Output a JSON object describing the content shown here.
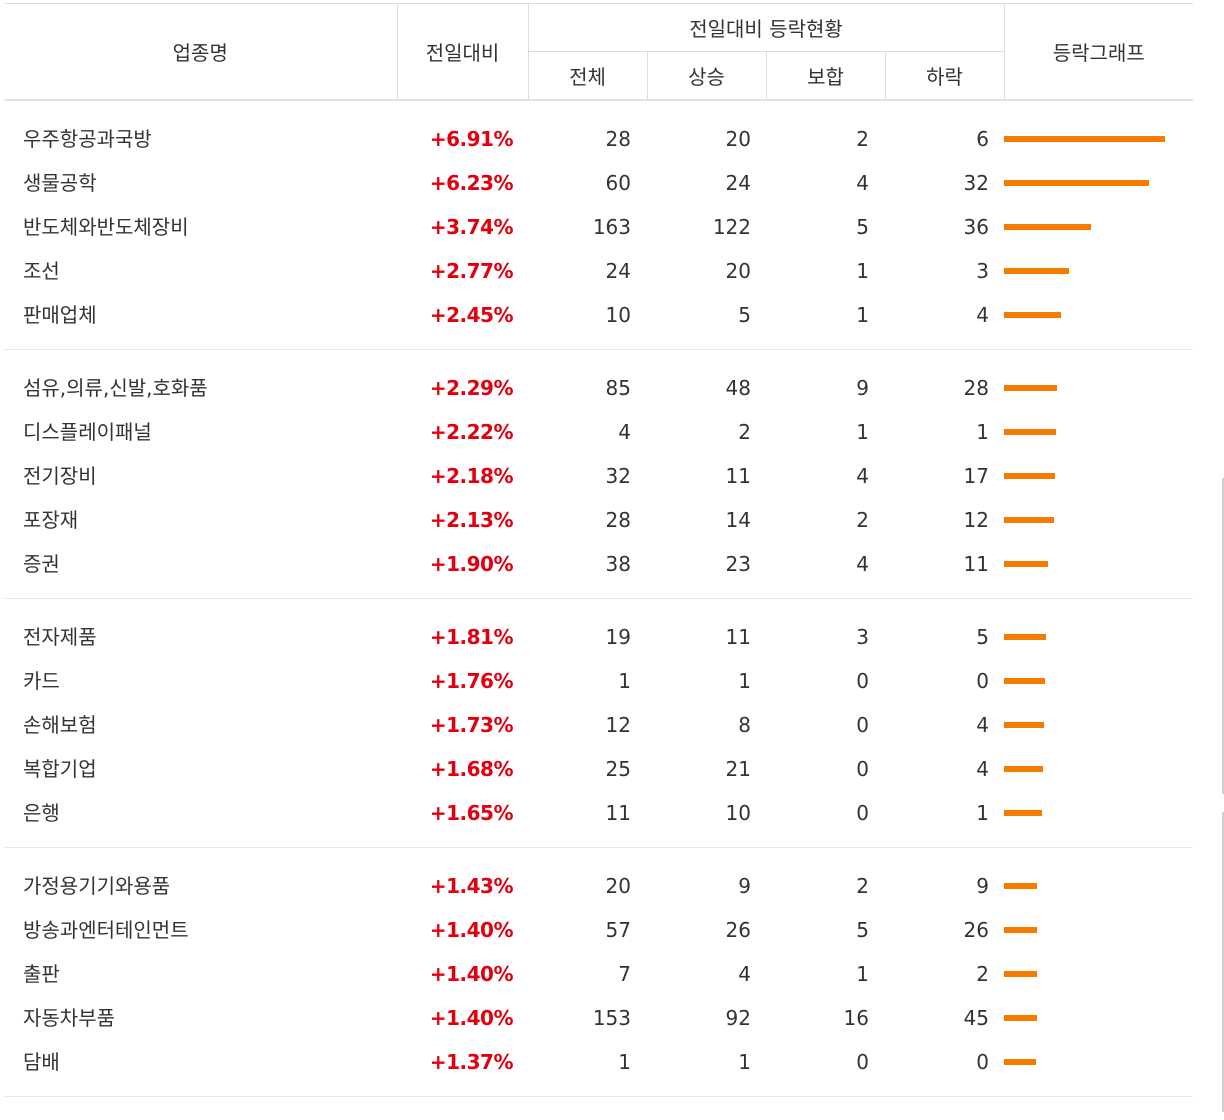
{
  "header": {
    "industry": "업종명",
    "change": "전일대비",
    "group": "전일대비 등락현황",
    "total": "전체",
    "up": "상승",
    "flat": "보합",
    "down": "하락",
    "graph": "등락그래프"
  },
  "colors": {
    "rate": "#e0000f",
    "bar": "#f57c00"
  },
  "groups": [
    {
      "rows": [
        {
          "name": "우주항공과국방",
          "rate": "+6.91%",
          "pct": 6.91,
          "total": "28",
          "up": "20",
          "flat": "2",
          "down": "6"
        },
        {
          "name": "생물공학",
          "rate": "+6.23%",
          "pct": 6.23,
          "total": "60",
          "up": "24",
          "flat": "4",
          "down": "32"
        },
        {
          "name": "반도체와반도체장비",
          "rate": "+3.74%",
          "pct": 3.74,
          "total": "163",
          "up": "122",
          "flat": "5",
          "down": "36"
        },
        {
          "name": "조선",
          "rate": "+2.77%",
          "pct": 2.77,
          "total": "24",
          "up": "20",
          "flat": "1",
          "down": "3"
        },
        {
          "name": "판매업체",
          "rate": "+2.45%",
          "pct": 2.45,
          "total": "10",
          "up": "5",
          "flat": "1",
          "down": "4"
        }
      ]
    },
    {
      "rows": [
        {
          "name": "섬유,의류,신발,호화품",
          "rate": "+2.29%",
          "pct": 2.29,
          "total": "85",
          "up": "48",
          "flat": "9",
          "down": "28"
        },
        {
          "name": "디스플레이패널",
          "rate": "+2.22%",
          "pct": 2.22,
          "total": "4",
          "up": "2",
          "flat": "1",
          "down": "1"
        },
        {
          "name": "전기장비",
          "rate": "+2.18%",
          "pct": 2.18,
          "total": "32",
          "up": "11",
          "flat": "4",
          "down": "17"
        },
        {
          "name": "포장재",
          "rate": "+2.13%",
          "pct": 2.13,
          "total": "28",
          "up": "14",
          "flat": "2",
          "down": "12"
        },
        {
          "name": "증권",
          "rate": "+1.90%",
          "pct": 1.9,
          "total": "38",
          "up": "23",
          "flat": "4",
          "down": "11"
        }
      ]
    },
    {
      "rows": [
        {
          "name": "전자제품",
          "rate": "+1.81%",
          "pct": 1.81,
          "total": "19",
          "up": "11",
          "flat": "3",
          "down": "5"
        },
        {
          "name": "카드",
          "rate": "+1.76%",
          "pct": 1.76,
          "total": "1",
          "up": "1",
          "flat": "0",
          "down": "0"
        },
        {
          "name": "손해보험",
          "rate": "+1.73%",
          "pct": 1.73,
          "total": "12",
          "up": "8",
          "flat": "0",
          "down": "4"
        },
        {
          "name": "복합기업",
          "rate": "+1.68%",
          "pct": 1.68,
          "total": "25",
          "up": "21",
          "flat": "0",
          "down": "4"
        },
        {
          "name": "은행",
          "rate": "+1.65%",
          "pct": 1.65,
          "total": "11",
          "up": "10",
          "flat": "0",
          "down": "1"
        }
      ]
    },
    {
      "rows": [
        {
          "name": "가정용기기와용품",
          "rate": "+1.43%",
          "pct": 1.43,
          "total": "20",
          "up": "9",
          "flat": "2",
          "down": "9"
        },
        {
          "name": "방송과엔터테인먼트",
          "rate": "+1.40%",
          "pct": 1.4,
          "total": "57",
          "up": "26",
          "flat": "5",
          "down": "26"
        },
        {
          "name": "출판",
          "rate": "+1.40%",
          "pct": 1.4,
          "total": "7",
          "up": "4",
          "flat": "1",
          "down": "2"
        },
        {
          "name": "자동차부품",
          "rate": "+1.40%",
          "pct": 1.4,
          "total": "153",
          "up": "92",
          "flat": "16",
          "down": "45"
        },
        {
          "name": "담배",
          "rate": "+1.37%",
          "pct": 1.37,
          "total": "1",
          "up": "1",
          "flat": "0",
          "down": "0"
        }
      ]
    }
  ]
}
